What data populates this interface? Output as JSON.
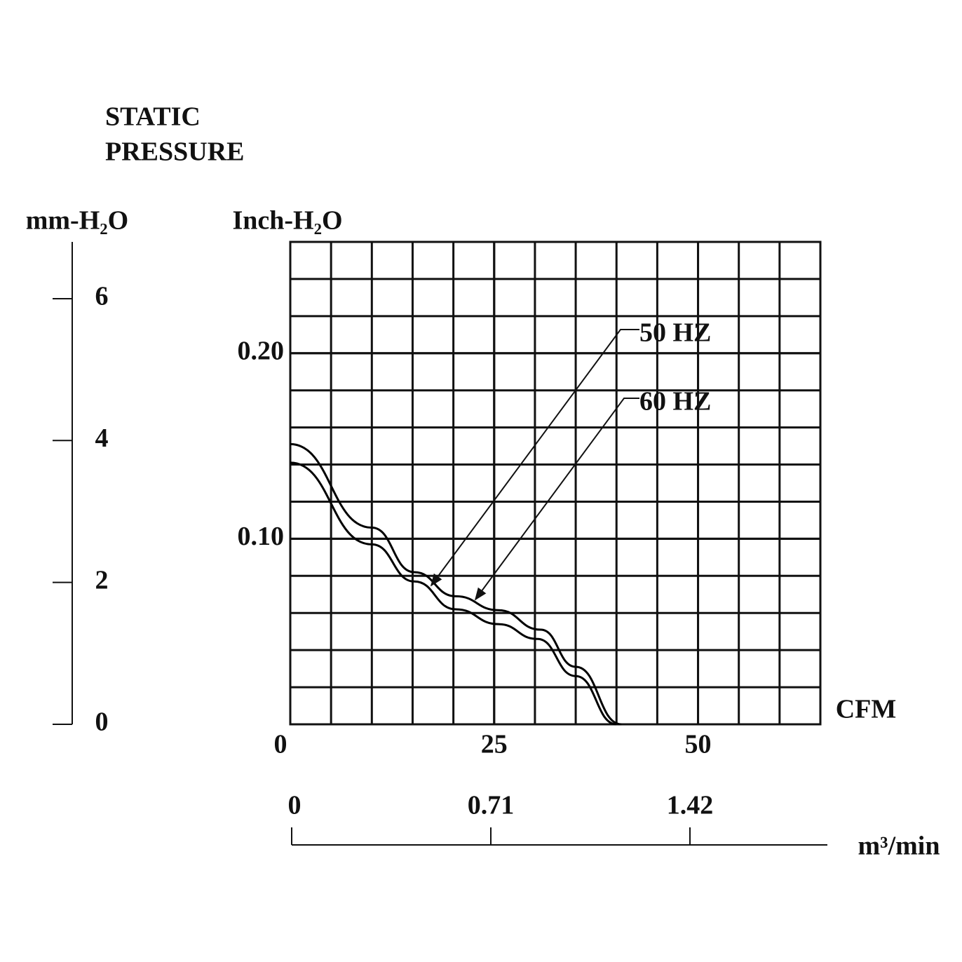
{
  "chart_data": {
    "type": "line",
    "title_lines": [
      "STATIC",
      "PRESSURE"
    ],
    "x_label": "CFM",
    "y_label": "Inch-H₂O",
    "y2_label": "mm-H₂O",
    "x2_label": "m³/min",
    "xlim": [
      0,
      65
    ],
    "xticks": [
      0,
      25,
      50
    ],
    "ylim": [
      0,
      0.26
    ],
    "yticks": [
      {
        "value": 0.1,
        "label": "0.10"
      },
      {
        "value": 0.2,
        "label": "0.20"
      }
    ],
    "y2lim": [
      0,
      6.8
    ],
    "y2ticks": [
      0,
      2,
      4,
      6
    ],
    "x2lim": [
      0,
      1.91
    ],
    "x2ticks": [
      0,
      0.71,
      1.42
    ],
    "grid": true,
    "series": [
      {
        "name": "50 HZ",
        "color": "#000000",
        "x": [
          0,
          10,
          15.2,
          20.3,
          25.5,
          30.3,
          35,
          40
        ],
        "values": [
          0.141,
          0.097,
          0.077,
          0.062,
          0.054,
          0.046,
          0.026,
          0
        ]
      },
      {
        "name": "60 HZ",
        "color": "#000000",
        "x": [
          0,
          10,
          15.2,
          20.3,
          25.5,
          30.7,
          35,
          40.6
        ],
        "values": [
          0.151,
          0.106,
          0.082,
          0.069,
          0.0615,
          0.051,
          0.031,
          0
        ]
      }
    ]
  }
}
